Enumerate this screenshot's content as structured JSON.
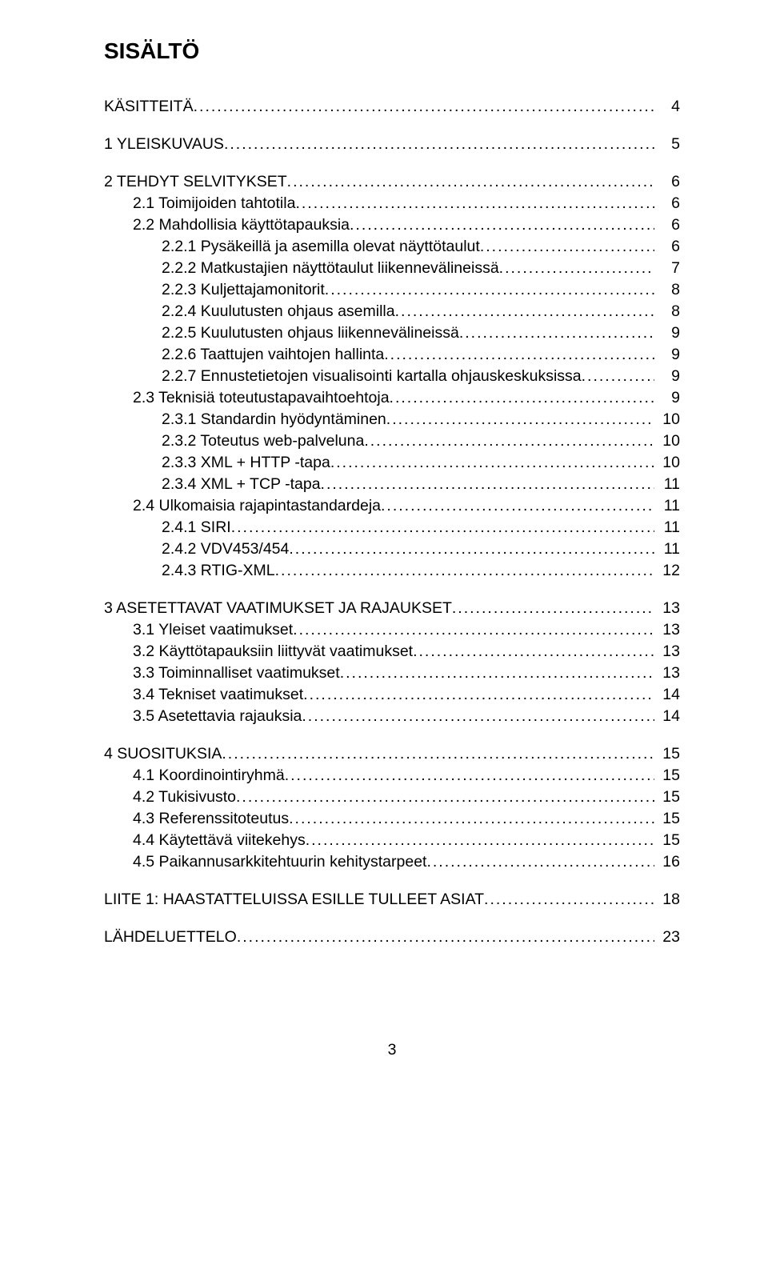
{
  "title": "SISÄLTÖ",
  "pageNumber": "3",
  "entries": [
    {
      "level": 0,
      "label": "KÄSITTEITÄ",
      "page": "4",
      "first": true
    },
    {
      "level": 0,
      "label": "1",
      "title": "YLEISKUVAUS",
      "page": "5"
    },
    {
      "level": 0,
      "label": "2",
      "title": "TEHDYT SELVITYKSET",
      "page": "6"
    },
    {
      "level": 1,
      "label": "2.1  Toimijoiden tahtotila",
      "page": "6"
    },
    {
      "level": 1,
      "label": "2.2  Mahdollisia käyttötapauksia",
      "page": "6"
    },
    {
      "level": 2,
      "label": "2.2.1  Pysäkeillä ja asemilla olevat näyttötaulut",
      "page": "6"
    },
    {
      "level": 2,
      "label": "2.2.2  Matkustajien näyttötaulut liikennevälineissä",
      "page": "7"
    },
    {
      "level": 2,
      "label": "2.2.3  Kuljettajamonitorit",
      "page": "8"
    },
    {
      "level": 2,
      "label": "2.2.4  Kuulutusten ohjaus asemilla",
      "page": "8"
    },
    {
      "level": 2,
      "label": "2.2.5  Kuulutusten ohjaus liikennevälineissä",
      "page": "9"
    },
    {
      "level": 2,
      "label": "2.2.6  Taattujen vaihtojen hallinta",
      "page": "9"
    },
    {
      "level": 2,
      "label": "2.2.7  Ennustetietojen visualisointi kartalla ohjauskeskuksissa",
      "page": "9"
    },
    {
      "level": 1,
      "label": "2.3  Teknisiä toteutustapavaihtoehtoja",
      "page": "9"
    },
    {
      "level": 2,
      "label": "2.3.1  Standardin hyödyntäminen",
      "page": "10"
    },
    {
      "level": 2,
      "label": "2.3.2  Toteutus web-palveluna",
      "page": "10"
    },
    {
      "level": 2,
      "label": "2.3.3  XML + HTTP -tapa",
      "page": "10"
    },
    {
      "level": 2,
      "label": "2.3.4  XML + TCP -tapa",
      "page": "11"
    },
    {
      "level": 1,
      "label": "2.4  Ulkomaisia rajapintastandardeja",
      "page": "11"
    },
    {
      "level": 2,
      "label": "2.4.1  SIRI",
      "page": "11"
    },
    {
      "level": 2,
      "label": "2.4.2  VDV453/454",
      "page": "11"
    },
    {
      "level": 2,
      "label": "2.4.3  RTIG-XML",
      "page": "12"
    },
    {
      "level": 0,
      "label": "3",
      "title": "ASETETTAVAT VAATIMUKSET JA RAJAUKSET",
      "page": "13"
    },
    {
      "level": 1,
      "label": "3.1  Yleiset vaatimukset",
      "page": "13"
    },
    {
      "level": 1,
      "label": "3.2  Käyttötapauksiin liittyvät vaatimukset",
      "page": "13"
    },
    {
      "level": 1,
      "label": "3.3  Toiminnalliset vaatimukset",
      "page": "13"
    },
    {
      "level": 1,
      "label": "3.4  Tekniset vaatimukset",
      "page": "14"
    },
    {
      "level": 1,
      "label": "3.5  Asetettavia rajauksia",
      "page": "14"
    },
    {
      "level": 0,
      "label": "4",
      "title": "SUOSITUKSIA",
      "page": "15"
    },
    {
      "level": 1,
      "label": "4.1  Koordinointiryhmä",
      "page": "15"
    },
    {
      "level": 1,
      "label": "4.2  Tukisivusto",
      "page": "15"
    },
    {
      "level": 1,
      "label": "4.3  Referenssitoteutus",
      "page": "15"
    },
    {
      "level": 1,
      "label": "4.4  Käytettävä viitekehys",
      "page": "15"
    },
    {
      "level": 1,
      "label": "4.5  Paikannusarkkitehtuurin kehitystarpeet",
      "page": "16"
    },
    {
      "level": 0,
      "label": "LIITE 1: HAASTATTELUISSA ESILLE TULLEET ASIAT",
      "page": "18"
    },
    {
      "level": 0,
      "label": "LÄHDELUETTELO",
      "page": "23"
    }
  ]
}
